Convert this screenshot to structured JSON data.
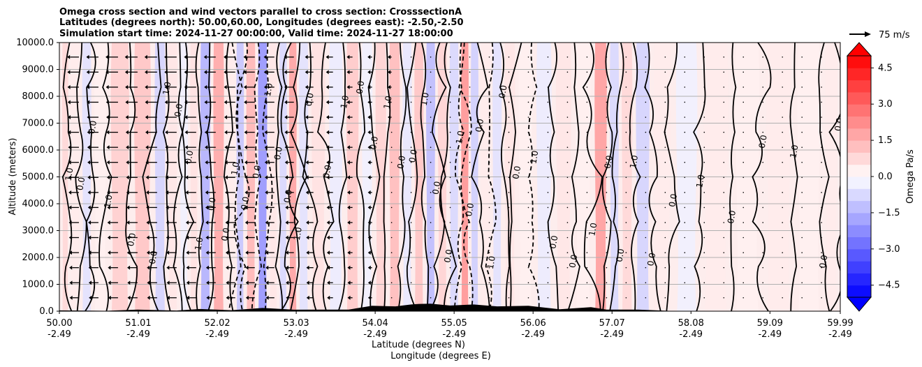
{
  "chart_data": {
    "type": "contour",
    "title_lines": [
      "Omega cross section and wind vectors parallel to cross section: CrosssectionA",
      "Latitudes (degrees north): 50.00,60.00, Longitudes (degrees east): -2.50,-2.50",
      "Simulation start time: 2024-11-27 00:00:00, Valid time: 2024-11-27 18:00:00"
    ],
    "xlabel_lines": [
      "Latitude (degrees N)",
      "Longitude (degrees E)"
    ],
    "ylabel": "Altitude (meters)",
    "x_range": [
      50.0,
      59.99
    ],
    "ylim": [
      0,
      10000
    ],
    "x_ticks": [
      {
        "value": 50.0,
        "lat": "50.00",
        "lon": "-2.49"
      },
      {
        "value": 51.01,
        "lat": "51.01",
        "lon": "-2.49"
      },
      {
        "value": 52.02,
        "lat": "52.02",
        "lon": "-2.49"
      },
      {
        "value": 53.03,
        "lat": "53.03",
        "lon": "-2.49"
      },
      {
        "value": 54.04,
        "lat": "54.04",
        "lon": "-2.49"
      },
      {
        "value": 55.05,
        "lat": "55.05",
        "lon": "-2.49"
      },
      {
        "value": 56.06,
        "lat": "56.06",
        "lon": "-2.49"
      },
      {
        "value": 57.07,
        "lat": "57.07",
        "lon": "-2.49"
      },
      {
        "value": 58.08,
        "lat": "58.08",
        "lon": "-2.49"
      },
      {
        "value": 59.09,
        "lat": "59.09",
        "lon": "-2.49"
      },
      {
        "value": 59.99,
        "lat": "59.99",
        "lon": "-2.49"
      }
    ],
    "y_ticks": [
      {
        "value": 0,
        "label": "0.0"
      },
      {
        "value": 1000,
        "label": "1000.0"
      },
      {
        "value": 2000,
        "label": "2000.0"
      },
      {
        "value": 3000,
        "label": "3000.0"
      },
      {
        "value": 4000,
        "label": "4000.0"
      },
      {
        "value": 5000,
        "label": "5000.0"
      },
      {
        "value": 6000,
        "label": "6000.0"
      },
      {
        "value": 7000,
        "label": "7000.0"
      },
      {
        "value": 8000,
        "label": "8000.0"
      },
      {
        "value": 9000,
        "label": "9000.0"
      },
      {
        "value": 10000,
        "label": "10000.0"
      }
    ],
    "colorbar": {
      "label": "Omega Pa/s",
      "range": [
        -5.0,
        5.0
      ],
      "levels": 20,
      "ticks": [
        {
          "value": 4.5,
          "label": "4.5"
        },
        {
          "value": 3.0,
          "label": "3.0"
        },
        {
          "value": 1.5,
          "label": "1.5"
        },
        {
          "value": 0.0,
          "label": "0.0"
        },
        {
          "value": -1.5,
          "label": "−1.5"
        },
        {
          "value": -3.0,
          "label": "−3.0"
        },
        {
          "value": -4.5,
          "label": "−4.5"
        }
      ],
      "colormap": "bwr",
      "extend": "both"
    },
    "quiver_key": {
      "label": "75 m/s",
      "speed": 75
    },
    "contour_labels": [
      "0.0",
      "1.0",
      "-1.0"
    ],
    "bands": [
      {
        "lat": 50.05,
        "omega": 0.8
      },
      {
        "lat": 50.2,
        "omega": 0.4
      },
      {
        "lat": 50.35,
        "omega": -0.6
      },
      {
        "lat": 50.5,
        "omega": 0.3
      },
      {
        "lat": 50.75,
        "omega": 1.0
      },
      {
        "lat": 51.1,
        "omega": 1.2
      },
      {
        "lat": 51.3,
        "omega": -0.9
      },
      {
        "lat": 51.45,
        "omega": 0.5
      },
      {
        "lat": 51.6,
        "omega": -0.3
      },
      {
        "lat": 51.72,
        "omega": 0.6
      },
      {
        "lat": 51.85,
        "omega": -1.6
      },
      {
        "lat": 52.05,
        "omega": 1.8
      },
      {
        "lat": 52.2,
        "omega": 0.4
      },
      {
        "lat": 52.3,
        "omega": -1.2
      },
      {
        "lat": 52.45,
        "omega": 1.5
      },
      {
        "lat": 52.6,
        "omega": -2.2
      },
      {
        "lat": 52.75,
        "omega": 0.5
      },
      {
        "lat": 52.85,
        "omega": -0.8
      },
      {
        "lat": 53.0,
        "omega": 1.9
      },
      {
        "lat": 53.1,
        "omega": -0.6
      },
      {
        "lat": 53.3,
        "omega": 0.6
      },
      {
        "lat": 53.55,
        "omega": -0.4
      },
      {
        "lat": 53.75,
        "omega": 1.1
      },
      {
        "lat": 53.95,
        "omega": -0.3
      },
      {
        "lat": 54.1,
        "omega": 0.9
      },
      {
        "lat": 54.3,
        "omega": 1.4
      },
      {
        "lat": 54.45,
        "omega": -0.5
      },
      {
        "lat": 54.6,
        "omega": 1.2
      },
      {
        "lat": 54.75,
        "omega": -1.4
      },
      {
        "lat": 54.9,
        "omega": 0.9
      },
      {
        "lat": 55.05,
        "omega": -0.8
      },
      {
        "lat": 55.2,
        "omega": 2.2
      },
      {
        "lat": 55.3,
        "omega": -1.0
      },
      {
        "lat": 55.45,
        "omega": 0.4
      },
      {
        "lat": 55.6,
        "omega": -0.6
      },
      {
        "lat": 55.75,
        "omega": 0.5
      },
      {
        "lat": 55.95,
        "omega": 0.3
      },
      {
        "lat": 56.2,
        "omega": -0.4
      },
      {
        "lat": 56.45,
        "omega": 0.5
      },
      {
        "lat": 56.7,
        "omega": 0.3
      },
      {
        "lat": 56.95,
        "omega": 2.0
      },
      {
        "lat": 57.1,
        "omega": -0.8
      },
      {
        "lat": 57.25,
        "omega": 0.8
      },
      {
        "lat": 57.45,
        "omega": -0.9
      },
      {
        "lat": 57.7,
        "omega": 0.4
      },
      {
        "lat": 58.0,
        "omega": -0.3
      },
      {
        "lat": 58.4,
        "omega": 0.4
      },
      {
        "lat": 58.8,
        "omega": 0.3
      },
      {
        "lat": 59.2,
        "omega": 0.4
      },
      {
        "lat": 59.6,
        "omega": 0.3
      },
      {
        "lat": 59.95,
        "omega": 0.4
      }
    ],
    "wind_profile": [
      {
        "lat": 50.0,
        "u": -30
      },
      {
        "lat": 50.5,
        "u": -33
      },
      {
        "lat": 51.0,
        "u": -35
      },
      {
        "lat": 51.5,
        "u": -34
      },
      {
        "lat": 52.0,
        "u": -32
      },
      {
        "lat": 52.5,
        "u": -30
      },
      {
        "lat": 53.0,
        "u": -25
      },
      {
        "lat": 53.5,
        "u": -15
      },
      {
        "lat": 54.0,
        "u": -6
      },
      {
        "lat": 54.5,
        "u": -2
      },
      {
        "lat": 55.0,
        "u": -1
      },
      {
        "lat": 56.0,
        "u": 0
      },
      {
        "lat": 57.0,
        "u": 0
      },
      {
        "lat": 58.0,
        "u": 0
      },
      {
        "lat": 59.0,
        "u": 0
      },
      {
        "lat": 60.0,
        "u": 0
      }
    ],
    "terrain": [
      {
        "lat": 50.0,
        "alt": 30
      },
      {
        "lat": 50.6,
        "alt": 20
      },
      {
        "lat": 51.0,
        "alt": 60
      },
      {
        "lat": 51.5,
        "alt": 40
      },
      {
        "lat": 51.8,
        "alt": 80
      },
      {
        "lat": 52.2,
        "alt": 60
      },
      {
        "lat": 52.6,
        "alt": 120
      },
      {
        "lat": 53.0,
        "alt": 90
      },
      {
        "lat": 53.3,
        "alt": 60
      },
      {
        "lat": 53.7,
        "alt": 100
      },
      {
        "lat": 54.0,
        "alt": 200
      },
      {
        "lat": 54.3,
        "alt": 300
      },
      {
        "lat": 54.5,
        "alt": 250
      },
      {
        "lat": 54.6,
        "alt": 450
      },
      {
        "lat": 54.75,
        "alt": 280
      },
      {
        "lat": 55.0,
        "alt": 350
      },
      {
        "lat": 55.3,
        "alt": 250
      },
      {
        "lat": 55.6,
        "alt": 300
      },
      {
        "lat": 56.0,
        "alt": 200
      },
      {
        "lat": 56.4,
        "alt": 120
      },
      {
        "lat": 56.8,
        "alt": 150
      },
      {
        "lat": 57.0,
        "alt": 100
      },
      {
        "lat": 57.4,
        "alt": 60
      },
      {
        "lat": 57.8,
        "alt": 20
      },
      {
        "lat": 58.5,
        "alt": 5
      },
      {
        "lat": 59.5,
        "alt": 5
      },
      {
        "lat": 59.99,
        "alt": 5
      }
    ],
    "dashed_contours": [
      52.33,
      52.62,
      55.2,
      55.5,
      56.05
    ]
  }
}
